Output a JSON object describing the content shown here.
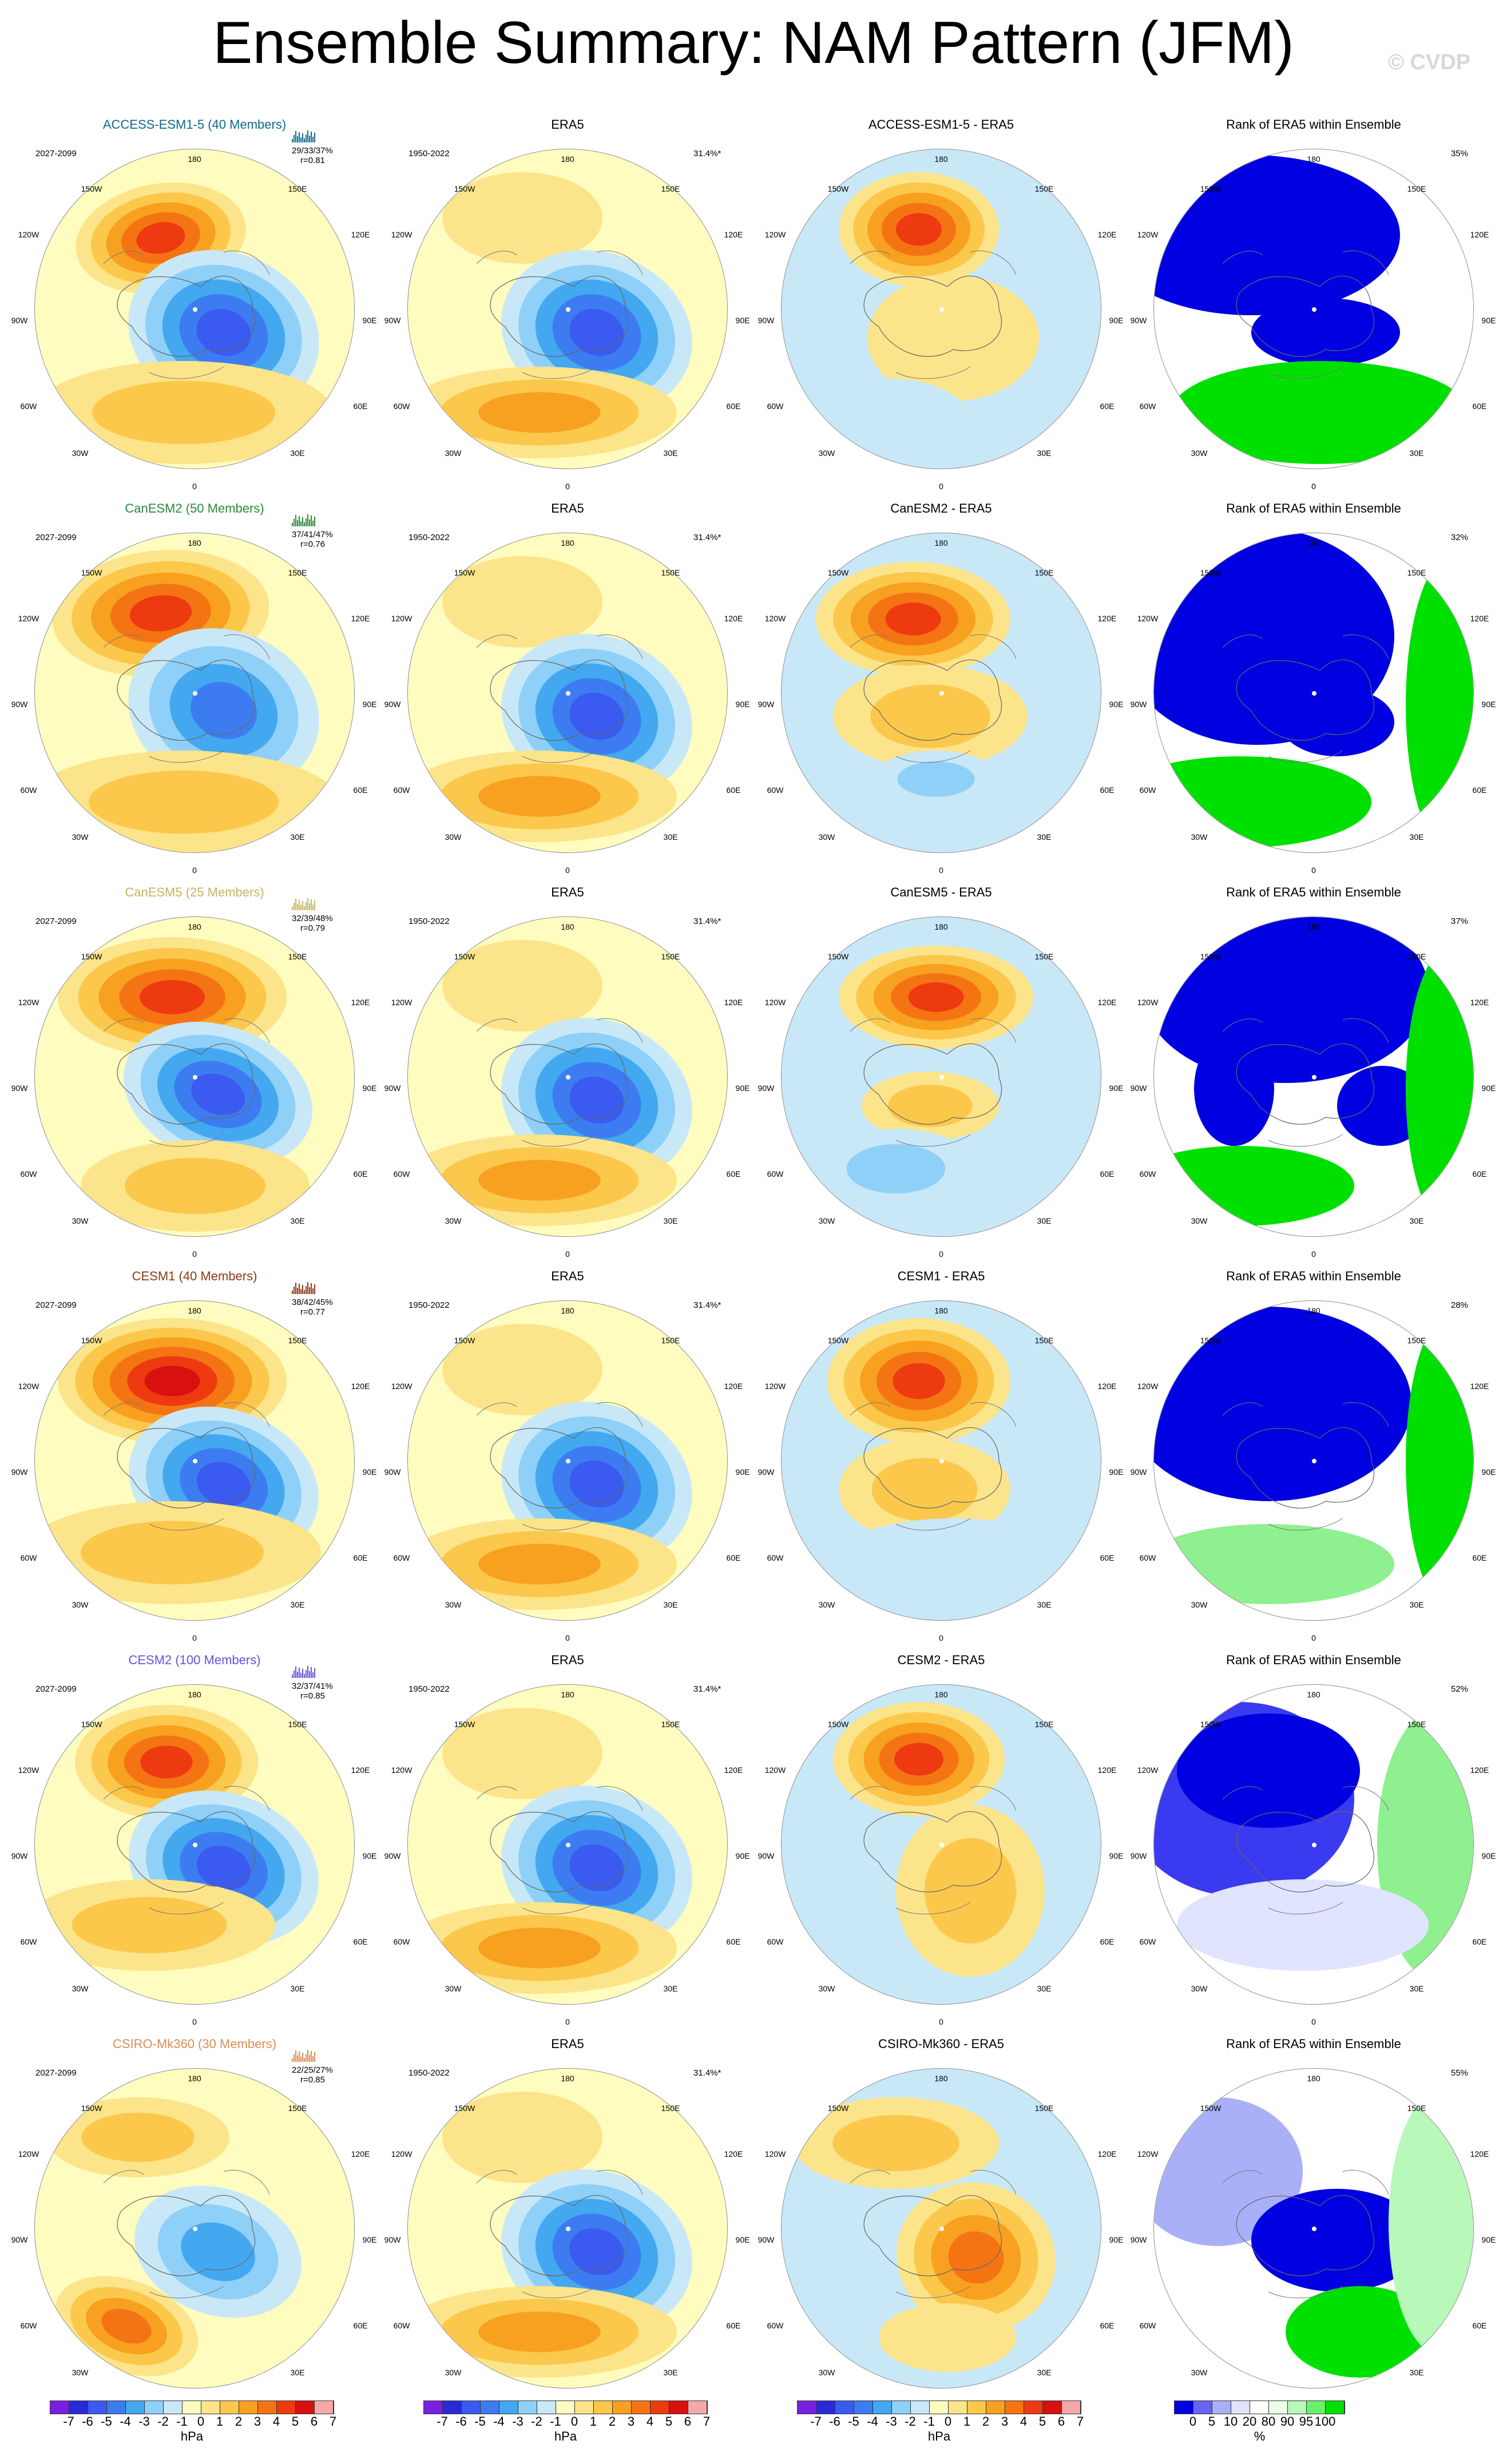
{
  "title": "Ensemble Summary: NAM Pattern (JFM)",
  "watermark": "© CVDP",
  "lon_labels": {
    "top": "180",
    "bottom": "0",
    "left": "90W",
    "right": "90E",
    "tl": "150W",
    "tr": "150E",
    "ul": "120W",
    "ur": "120E",
    "ll": "60W",
    "lr": "60E",
    "bl": "30W",
    "br": "30E"
  },
  "colors": {
    "model_accent": [
      "#0e6a8c",
      "#2a8a3a",
      "#c6b560",
      "#8b3a14",
      "#6a4fe0",
      "#d88e55"
    ],
    "cbar_hpa": [
      "#7a1fe0",
      "#2a2ad8",
      "#3a5af0",
      "#3c7cf0",
      "#44a8f0",
      "#8fd0f8",
      "#c8e8f8",
      "#fffcc0",
      "#fce48a",
      "#fbc84c",
      "#f8a020",
      "#f47414",
      "#ee3a10",
      "#d81010",
      "#f6a8a8"
    ],
    "cbar_rank": [
      "#0000e0",
      "#6666f0",
      "#aab0f8",
      "#e0e4ff",
      "#ffffff",
      "#e8ffe8",
      "#b8f8b8",
      "#6cf06c",
      "#00e000"
    ]
  },
  "rows": [
    {
      "model": "ACCESS-ESM1-5 (40 Members)",
      "period": "2027-2099",
      "stats": "29/33/37%",
      "r": "r=0.81",
      "obs_title": "ERA5",
      "obs_period": "1950-2022",
      "obs_pct": "31.4%*",
      "diff_title": "ACCESS-ESM1-5 - ERA5",
      "rank_title": "Rank of ERA5 within Ensemble",
      "rank_pct": "35%"
    },
    {
      "model": "CanESM2 (50 Members)",
      "period": "2027-2099",
      "stats": "37/41/47%",
      "r": "r=0.76",
      "obs_title": "ERA5",
      "obs_period": "1950-2022",
      "obs_pct": "31.4%*",
      "diff_title": "CanESM2 - ERA5",
      "rank_title": "Rank of ERA5 within Ensemble",
      "rank_pct": "32%"
    },
    {
      "model": "CanESM5 (25 Members)",
      "period": "2027-2099",
      "stats": "32/39/48%",
      "r": "r=0.79",
      "obs_title": "ERA5",
      "obs_period": "1950-2022",
      "obs_pct": "31.4%*",
      "diff_title": "CanESM5 - ERA5",
      "rank_title": "Rank of ERA5 within Ensemble",
      "rank_pct": "37%"
    },
    {
      "model": "CESM1 (40 Members)",
      "period": "2027-2099",
      "stats": "38/42/45%",
      "r": "r=0.77",
      "obs_title": "ERA5",
      "obs_period": "1950-2022",
      "obs_pct": "31.4%*",
      "diff_title": "CESM1 - ERA5",
      "rank_title": "Rank of ERA5 within Ensemble",
      "rank_pct": "28%"
    },
    {
      "model": "CESM2 (100 Members)",
      "period": "2027-2099",
      "stats": "32/37/41%",
      "r": "r=0.85",
      "obs_title": "ERA5",
      "obs_period": "1950-2022",
      "obs_pct": "31.4%*",
      "diff_title": "CESM2 - ERA5",
      "rank_title": "Rank of ERA5 within Ensemble",
      "rank_pct": "52%"
    },
    {
      "model": "CSIRO-Mk360 (30 Members)",
      "period": "2027-2099",
      "stats": "22/25/27%",
      "r": "r=0.85",
      "obs_title": "ERA5",
      "obs_period": "1950-2022",
      "obs_pct": "31.4%*",
      "diff_title": "CSIRO-Mk360 - ERA5",
      "rank_title": "Rank of ERA5 within Ensemble",
      "rank_pct": "55%"
    }
  ],
  "colorbars": {
    "hpa_ticks": [
      "-7",
      "-6",
      "-5",
      "-4",
      "-3",
      "-2",
      "-1",
      "0",
      "1",
      "2",
      "3",
      "4",
      "5",
      "6",
      "7"
    ],
    "hpa_unit": "hPa",
    "rank_ticks": [
      "0",
      "5",
      "10",
      "20",
      "80",
      "90",
      "95",
      "100"
    ],
    "rank_unit": "%"
  }
}
